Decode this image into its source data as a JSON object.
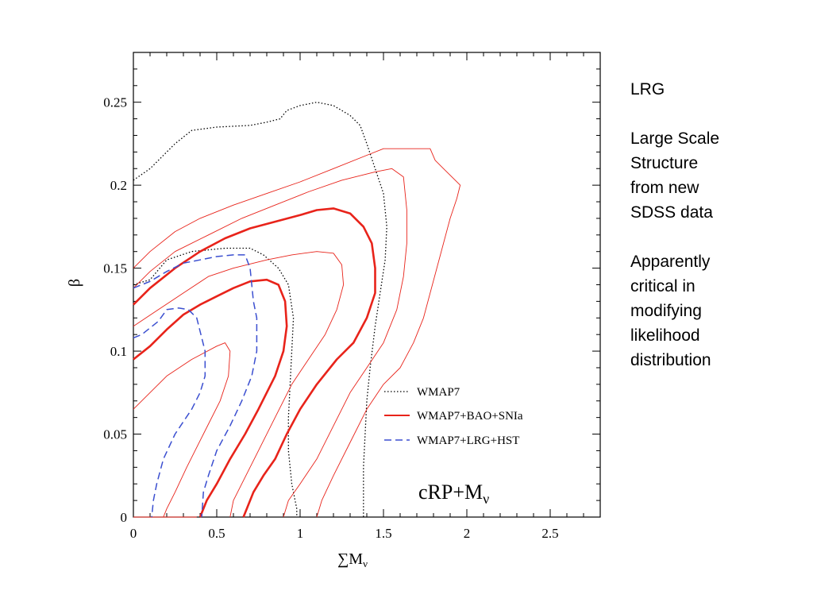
{
  "side_notes": {
    "heading": "LRG",
    "description": "Large Scale\nStructure\nfrom  new\nSDSS  data",
    "comment": "Apparently\ncritical in\nmodifying\nlikelihood\ndistribution"
  },
  "colors": {
    "wmap7": "#000000",
    "bao_snia": "#e8231a",
    "lrg_hst": "#3b4fd0"
  },
  "chart_data": {
    "type": "contour",
    "xlabel": "∑M",
    "xlabel_subscript": "ν",
    "ylabel": "β",
    "xlim": [
      0,
      2.8
    ],
    "ylim": [
      0,
      0.28
    ],
    "xticks": [
      0,
      0.5,
      1,
      1.5,
      2,
      2.5
    ],
    "xtick_labels": [
      "0",
      "0.5",
      "1",
      "1.5",
      "2",
      "2.5"
    ],
    "yticks": [
      0,
      0.05,
      0.1,
      0.15,
      0.2,
      0.25
    ],
    "ytick_labels": [
      "0",
      "0.05",
      "0.1",
      "0.15",
      "0.2",
      "0.25"
    ],
    "annotation": "cRP+M",
    "annotation_subscript": "ν",
    "legend_position": "lower-right",
    "series": [
      {
        "name": "WMAP7",
        "style": "dotted",
        "contours": [
          [
            [
              0,
              0.203
            ],
            [
              0.1,
              0.21
            ],
            [
              0.25,
              0.225
            ],
            [
              0.35,
              0.233
            ],
            [
              0.5,
              0.235
            ],
            [
              0.7,
              0.236
            ],
            [
              0.8,
              0.238
            ],
            [
              0.88,
              0.24
            ],
            [
              0.92,
              0.245
            ],
            [
              1.0,
              0.248
            ],
            [
              1.1,
              0.25
            ],
            [
              1.2,
              0.248
            ],
            [
              1.3,
              0.242
            ],
            [
              1.36,
              0.236
            ],
            [
              1.4,
              0.225
            ],
            [
              1.45,
              0.21
            ],
            [
              1.5,
              0.195
            ],
            [
              1.52,
              0.175
            ],
            [
              1.51,
              0.155
            ],
            [
              1.48,
              0.135
            ],
            [
              1.45,
              0.115
            ],
            [
              1.42,
              0.09
            ],
            [
              1.4,
              0.07
            ],
            [
              1.39,
              0.05
            ],
            [
              1.38,
              0.03
            ],
            [
              1.38,
              0.01
            ],
            [
              1.38,
              0.0
            ]
          ],
          [
            [
              0,
              0.14
            ],
            [
              0.1,
              0.143
            ],
            [
              0.2,
              0.155
            ],
            [
              0.35,
              0.16
            ],
            [
              0.55,
              0.162
            ],
            [
              0.7,
              0.162
            ],
            [
              0.78,
              0.158
            ],
            [
              0.87,
              0.15
            ],
            [
              0.93,
              0.14
            ],
            [
              0.96,
              0.12
            ],
            [
              0.95,
              0.1
            ],
            [
              0.94,
              0.08
            ],
            [
              0.93,
              0.06
            ],
            [
              0.93,
              0.04
            ],
            [
              0.95,
              0.02
            ],
            [
              0.98,
              0.005
            ],
            [
              0.98,
              0.0
            ]
          ]
        ]
      },
      {
        "name": "WMAP7+BAO+SNIa",
        "style": "solid",
        "contours": [
          {
            "bold": true,
            "points": [
              [
                0,
                0.128
              ],
              [
                0.1,
                0.138
              ],
              [
                0.25,
                0.15
              ],
              [
                0.4,
                0.16
              ],
              [
                0.55,
                0.168
              ],
              [
                0.7,
                0.174
              ],
              [
                0.85,
                0.178
              ],
              [
                1.0,
                0.182
              ],
              [
                1.1,
                0.185
              ],
              [
                1.2,
                0.186
              ],
              [
                1.3,
                0.183
              ],
              [
                1.38,
                0.175
              ],
              [
                1.43,
                0.165
              ],
              [
                1.45,
                0.15
              ],
              [
                1.45,
                0.135
              ],
              [
                1.4,
                0.12
              ],
              [
                1.32,
                0.105
              ],
              [
                1.22,
                0.095
              ],
              [
                1.1,
                0.08
              ],
              [
                1.0,
                0.065
              ],
              [
                0.92,
                0.05
              ],
              [
                0.85,
                0.035
              ],
              [
                0.78,
                0.025
              ],
              [
                0.72,
                0.015
              ],
              [
                0.68,
                0.005
              ],
              [
                0.66,
                0.0
              ]
            ]
          },
          {
            "bold": true,
            "points": [
              [
                0,
                0.095
              ],
              [
                0.1,
                0.103
              ],
              [
                0.2,
                0.113
              ],
              [
                0.3,
                0.122
              ],
              [
                0.4,
                0.128
              ],
              [
                0.5,
                0.133
              ],
              [
                0.6,
                0.138
              ],
              [
                0.7,
                0.142
              ],
              [
                0.8,
                0.143
              ],
              [
                0.87,
                0.14
              ],
              [
                0.91,
                0.13
              ],
              [
                0.92,
                0.115
              ],
              [
                0.9,
                0.1
              ],
              [
                0.85,
                0.085
              ],
              [
                0.75,
                0.065
              ],
              [
                0.67,
                0.05
              ],
              [
                0.58,
                0.035
              ],
              [
                0.5,
                0.02
              ],
              [
                0.44,
                0.01
              ],
              [
                0.4,
                0.0
              ]
            ]
          },
          {
            "bold": false,
            "points": [
              [
                0,
                0.15
              ],
              [
                0.1,
                0.16
              ],
              [
                0.25,
                0.172
              ],
              [
                0.4,
                0.18
              ],
              [
                0.6,
                0.188
              ],
              [
                0.8,
                0.195
              ],
              [
                1.0,
                0.202
              ],
              [
                1.2,
                0.21
              ],
              [
                1.4,
                0.218
              ],
              [
                1.5,
                0.222
              ],
              [
                1.66,
                0.222
              ],
              [
                1.78,
                0.222
              ],
              [
                1.81,
                0.215
              ],
              [
                1.86,
                0.21
              ],
              [
                1.96,
                0.2
              ],
              [
                1.94,
                0.192
              ],
              [
                1.9,
                0.18
              ],
              [
                1.86,
                0.165
              ],
              [
                1.82,
                0.15
              ],
              [
                1.78,
                0.135
              ],
              [
                1.74,
                0.12
              ],
              [
                1.68,
                0.105
              ],
              [
                1.6,
                0.09
              ],
              [
                1.5,
                0.08
              ],
              [
                1.4,
                0.065
              ],
              [
                1.3,
                0.045
              ],
              [
                1.2,
                0.025
              ],
              [
                1.13,
                0.01
              ],
              [
                1.1,
                0.0
              ]
            ]
          },
          {
            "bold": false,
            "points": [
              [
                0,
                0.138
              ],
              [
                0.1,
                0.148
              ],
              [
                0.25,
                0.16
              ],
              [
                0.45,
                0.17
              ],
              [
                0.65,
                0.18
              ],
              [
                0.85,
                0.188
              ],
              [
                1.05,
                0.196
              ],
              [
                1.25,
                0.203
              ],
              [
                1.45,
                0.208
              ],
              [
                1.55,
                0.21
              ],
              [
                1.62,
                0.205
              ],
              [
                1.64,
                0.185
              ],
              [
                1.64,
                0.165
              ],
              [
                1.62,
                0.145
              ],
              [
                1.58,
                0.125
              ],
              [
                1.5,
                0.105
              ],
              [
                1.4,
                0.09
              ],
              [
                1.3,
                0.075
              ],
              [
                1.2,
                0.055
              ],
              [
                1.1,
                0.035
              ],
              [
                1.0,
                0.02
              ],
              [
                0.93,
                0.01
              ],
              [
                0.9,
                0.0
              ]
            ]
          },
          {
            "bold": false,
            "points": [
              [
                0,
                0.115
              ],
              [
                0.15,
                0.125
              ],
              [
                0.3,
                0.135
              ],
              [
                0.45,
                0.145
              ],
              [
                0.6,
                0.15
              ],
              [
                0.8,
                0.155
              ],
              [
                0.95,
                0.158
              ],
              [
                1.1,
                0.16
              ],
              [
                1.2,
                0.159
              ],
              [
                1.25,
                0.152
              ],
              [
                1.26,
                0.14
              ],
              [
                1.22,
                0.125
              ],
              [
                1.15,
                0.11
              ],
              [
                1.05,
                0.095
              ],
              [
                0.95,
                0.08
              ],
              [
                0.85,
                0.06
              ],
              [
                0.75,
                0.04
              ],
              [
                0.65,
                0.02
              ],
              [
                0.6,
                0.01
              ],
              [
                0.58,
                0.0
              ]
            ]
          },
          {
            "bold": false,
            "points": [
              [
                0,
                0.065
              ],
              [
                0.1,
                0.075
              ],
              [
                0.2,
                0.085
              ],
              [
                0.35,
                0.095
              ],
              [
                0.5,
                0.103
              ],
              [
                0.55,
                0.105
              ],
              [
                0.58,
                0.1
              ],
              [
                0.57,
                0.085
              ],
              [
                0.52,
                0.07
              ],
              [
                0.42,
                0.05
              ],
              [
                0.32,
                0.03
              ],
              [
                0.25,
                0.015
              ],
              [
                0.2,
                0.005
              ],
              [
                0.18,
                0.0
              ]
            ]
          },
          {
            "bold": false,
            "points": [
              [
                0,
                0.0
              ],
              [
                0.38,
                0.0
              ]
            ]
          }
        ]
      },
      {
        "name": "WMAP7+LRG+HST",
        "style": "dashed",
        "contours": [
          [
            [
              0,
              0.138
            ],
            [
              0.1,
              0.142
            ],
            [
              0.2,
              0.148
            ],
            [
              0.3,
              0.153
            ],
            [
              0.4,
              0.155
            ],
            [
              0.5,
              0.157
            ],
            [
              0.6,
              0.158
            ],
            [
              0.67,
              0.158
            ],
            [
              0.7,
              0.15
            ],
            [
              0.71,
              0.14
            ],
            [
              0.72,
              0.13
            ],
            [
              0.74,
              0.12
            ],
            [
              0.74,
              0.1
            ],
            [
              0.71,
              0.085
            ],
            [
              0.65,
              0.07
            ],
            [
              0.58,
              0.055
            ],
            [
              0.5,
              0.04
            ],
            [
              0.45,
              0.025
            ],
            [
              0.42,
              0.015
            ],
            [
              0.41,
              0.0
            ]
          ],
          [
            [
              0,
              0.108
            ],
            [
              0.05,
              0.11
            ],
            [
              0.15,
              0.118
            ],
            [
              0.2,
              0.125
            ],
            [
              0.27,
              0.126
            ],
            [
              0.33,
              0.125
            ],
            [
              0.38,
              0.12
            ],
            [
              0.41,
              0.108
            ],
            [
              0.43,
              0.1
            ],
            [
              0.43,
              0.085
            ],
            [
              0.4,
              0.075
            ],
            [
              0.35,
              0.065
            ],
            [
              0.25,
              0.05
            ],
            [
              0.18,
              0.035
            ],
            [
              0.14,
              0.02
            ],
            [
              0.12,
              0.01
            ],
            [
              0.11,
              0.0
            ]
          ]
        ]
      }
    ]
  }
}
